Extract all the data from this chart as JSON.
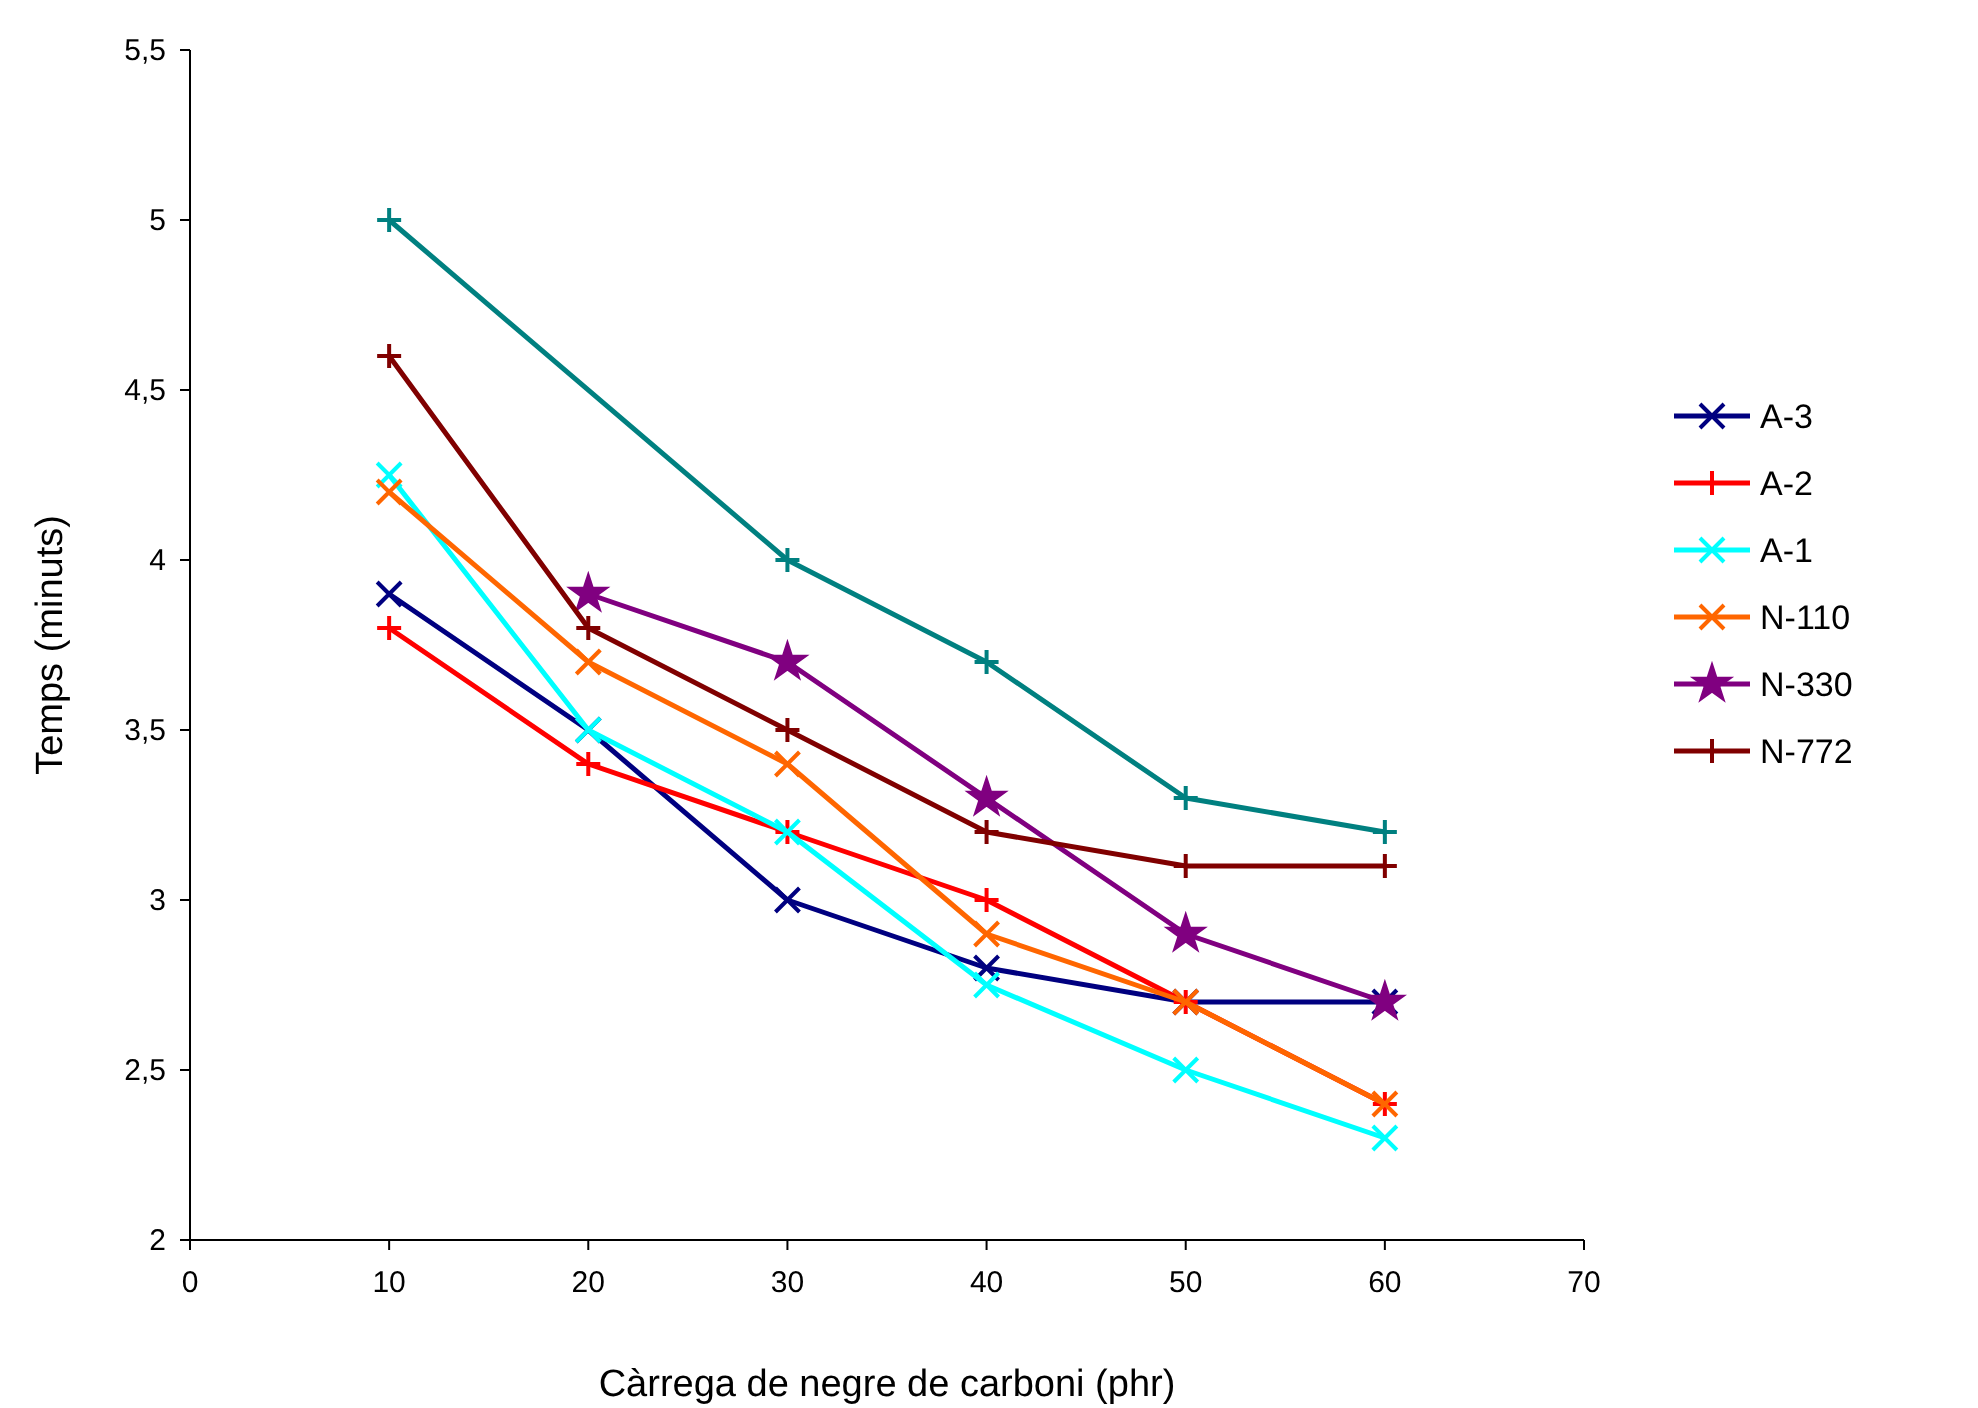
{
  "chart_data": {
    "type": "line",
    "xlabel": "Càrrega de negre de carboni (phr)",
    "ylabel": "Temps (minuts)",
    "x": [
      10,
      20,
      30,
      40,
      50,
      60
    ],
    "xlim": [
      0,
      70
    ],
    "xticks": [
      0,
      10,
      20,
      30,
      40,
      50,
      60,
      70
    ],
    "ylim": [
      2,
      5.5
    ],
    "yticks": [
      {
        "value": 2,
        "label": "2"
      },
      {
        "value": 2.5,
        "label": "2,5"
      },
      {
        "value": 3,
        "label": "3"
      },
      {
        "value": 3.5,
        "label": "3,5"
      },
      {
        "value": 4,
        "label": "4"
      },
      {
        "value": 4.5,
        "label": "4,5"
      },
      {
        "value": 5,
        "label": "5"
      },
      {
        "value": 5.5,
        "label": "5,5"
      }
    ],
    "grid": false,
    "legend": "right",
    "series": [
      {
        "name": "A-3",
        "color": "#000080",
        "marker": "cross",
        "values": [
          3.9,
          3.5,
          3.0,
          2.8,
          2.7,
          2.7
        ]
      },
      {
        "name": "A-2",
        "color": "#ff0000",
        "marker": "plus",
        "values": [
          3.8,
          3.4,
          3.2,
          3.0,
          2.7,
          2.4
        ]
      },
      {
        "name": "A-1",
        "color": "#00ffff",
        "marker": "cross",
        "values": [
          4.25,
          3.5,
          3.2,
          2.75,
          2.5,
          2.3
        ]
      },
      {
        "name": "N-110",
        "color": "#ff6600",
        "marker": "cross",
        "values": [
          4.2,
          3.7,
          3.4,
          2.9,
          2.7,
          2.4
        ]
      },
      {
        "name": "N-330",
        "color": "#800080",
        "marker": "star",
        "values": [
          null,
          3.9,
          3.7,
          3.3,
          2.9,
          2.7
        ]
      },
      {
        "name": "N-772",
        "color": "#800000",
        "marker": "plus",
        "values": [
          4.6,
          3.8,
          3.5,
          3.2,
          3.1,
          3.1
        ]
      },
      {
        "color": "#008080",
        "marker": "plus",
        "values": [
          5.0,
          null,
          4.0,
          3.7,
          3.3,
          3.2
        ]
      }
    ]
  }
}
